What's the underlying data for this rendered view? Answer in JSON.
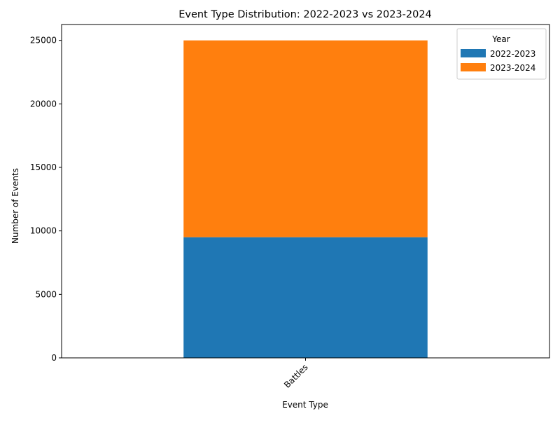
{
  "chart_data": {
    "type": "bar",
    "stacked": true,
    "title": "Event Type Distribution: 2022-2023 vs 2023-2024",
    "xlabel": "Event Type",
    "ylabel": "Number of Events",
    "categories": [
      "Battles"
    ],
    "series": [
      {
        "name": "2022-2023",
        "values": [
          9500
        ],
        "color": "#1f77b4"
      },
      {
        "name": "2023-2024",
        "values": [
          15500
        ],
        "color": "#ff7f0e"
      }
    ],
    "ylim": [
      0,
      26250
    ],
    "yticks": [
      0,
      5000,
      10000,
      15000,
      20000,
      25000
    ],
    "xtick_rotation": 45,
    "grid": false,
    "legend": {
      "title": "Year",
      "placement": "top-right"
    }
  }
}
